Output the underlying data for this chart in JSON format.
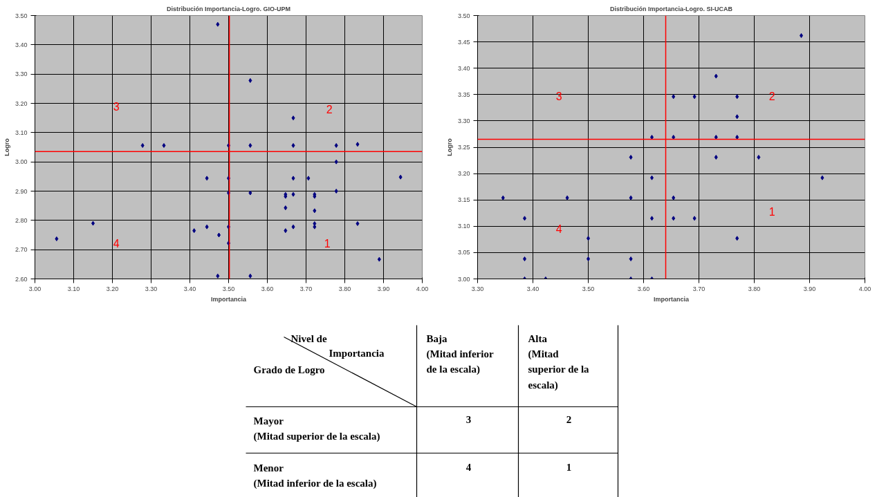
{
  "chart_data": [
    {
      "type": "scatter",
      "title": "Distribución Importancia-Logro. GIO-UPM",
      "xlabel": "Importancia",
      "ylabel": "Logro",
      "xlim": [
        3.0,
        4.0
      ],
      "ylim": [
        2.6,
        3.5
      ],
      "xticks": [
        {
          "value": 3.0,
          "label": "3.00"
        },
        {
          "value": 3.1,
          "label": "3.10"
        },
        {
          "value": 3.2,
          "label": "3.20"
        },
        {
          "value": 3.3,
          "label": "3.30"
        },
        {
          "value": 3.4,
          "label": "3.40"
        },
        {
          "value": 3.5,
          "label": "3.50"
        },
        {
          "value": 3.6,
          "label": "3.60"
        },
        {
          "value": 3.7,
          "label": "3.70"
        },
        {
          "value": 3.8,
          "label": "3.80"
        },
        {
          "value": 3.9,
          "label": "3.90"
        },
        {
          "value": 4.0,
          "label": "4.00"
        }
      ],
      "yticks": [
        {
          "value": 2.6,
          "label": "2.60"
        },
        {
          "value": 2.7,
          "label": "2.70"
        },
        {
          "value": 2.8,
          "label": "2.80"
        },
        {
          "value": 2.9,
          "label": "2.90"
        },
        {
          "value": 3.0,
          "label": "3.00"
        },
        {
          "value": 3.1,
          "label": "3.10"
        },
        {
          "value": 3.2,
          "label": "3.20"
        },
        {
          "value": 3.3,
          "label": "3.30"
        },
        {
          "value": 3.4,
          "label": "3.40"
        },
        {
          "value": 3.5,
          "label": "3.50"
        }
      ],
      "grid": true,
      "marker": "diamond",
      "series": [
        {
          "color": "#000080",
          "x": [
            3.056,
            3.15,
            3.278,
            3.333,
            3.472,
            3.444,
            3.411,
            3.444,
            3.475,
            3.472,
            3.5,
            3.5,
            3.5,
            3.5,
            3.5,
            3.556,
            3.556,
            3.556,
            3.556,
            3.667,
            3.667,
            3.667,
            3.667,
            3.647,
            3.647,
            3.647,
            3.647,
            3.667,
            3.706,
            3.722,
            3.722,
            3.722,
            3.722,
            3.722,
            3.778,
            3.778,
            3.778,
            3.833,
            3.833,
            3.889,
            3.944
          ],
          "values": [
            2.737,
            2.79,
            3.056,
            3.056,
            3.47,
            2.944,
            2.765,
            2.778,
            2.75,
            2.61,
            3.056,
            2.944,
            2.894,
            2.778,
            2.722,
            3.278,
            3.056,
            2.894,
            2.61,
            3.15,
            3.056,
            2.944,
            2.889,
            2.889,
            2.882,
            2.843,
            2.765,
            2.778,
            2.944,
            2.889,
            2.882,
            2.833,
            2.789,
            2.778,
            3.056,
            3.0,
            2.9,
            3.06,
            2.789,
            2.667,
            2.948
          ]
        }
      ],
      "ref_lines": [
        {
          "axis": "x",
          "value": 3.502,
          "color": "#ff0000"
        },
        {
          "axis": "y",
          "value": 3.035,
          "color": "#ff0000"
        }
      ],
      "annotations": [
        "3",
        "2",
        "4",
        "1"
      ]
    },
    {
      "type": "scatter",
      "title": "Distribución Importancia-Logro. SI-UCAB",
      "xlabel": "Importancia",
      "ylabel": "Logro",
      "xlim": [
        3.3,
        4.0
      ],
      "ylim": [
        3.0,
        3.5
      ],
      "xticks": [
        {
          "value": 3.3,
          "label": "3.30"
        },
        {
          "value": 3.4,
          "label": "3.40"
        },
        {
          "value": 3.5,
          "label": "3.50"
        },
        {
          "value": 3.6,
          "label": "3.60"
        },
        {
          "value": 3.7,
          "label": "3.70"
        },
        {
          "value": 3.8,
          "label": "3.80"
        },
        {
          "value": 3.9,
          "label": "3.90"
        },
        {
          "value": 4.0,
          "label": "4.00"
        }
      ],
      "yticks": [
        {
          "value": 3.0,
          "label": "3.00"
        },
        {
          "value": 3.05,
          "label": "3.05"
        },
        {
          "value": 3.1,
          "label": "3.10"
        },
        {
          "value": 3.15,
          "label": "3.15"
        },
        {
          "value": 3.2,
          "label": "3.20"
        },
        {
          "value": 3.25,
          "label": "3.25"
        },
        {
          "value": 3.3,
          "label": "3.30"
        },
        {
          "value": 3.35,
          "label": "3.35"
        },
        {
          "value": 3.4,
          "label": "3.40"
        },
        {
          "value": 3.45,
          "label": "3.45"
        },
        {
          "value": 3.5,
          "label": "3.50"
        }
      ],
      "grid": true,
      "marker": "diamond",
      "series": [
        {
          "color": "#000080",
          "x": [
            3.346,
            3.385,
            3.385,
            3.385,
            3.423,
            3.462,
            3.5,
            3.5,
            3.577,
            3.577,
            3.577,
            3.577,
            3.615,
            3.615,
            3.615,
            3.615,
            3.654,
            3.654,
            3.654,
            3.654,
            3.692,
            3.692,
            3.731,
            3.731,
            3.731,
            3.769,
            3.769,
            3.769,
            3.769,
            3.808,
            3.885,
            3.923
          ],
          "values": [
            3.154,
            3.115,
            3.038,
            3.0,
            3.0,
            3.154,
            3.077,
            3.038,
            3.231,
            3.154,
            3.038,
            3.0,
            3.269,
            3.192,
            3.115,
            3.0,
            3.346,
            3.269,
            3.154,
            3.115,
            3.346,
            3.115,
            3.385,
            3.269,
            3.231,
            3.346,
            3.308,
            3.269,
            3.077,
            3.231,
            3.462,
            3.192
          ]
        }
      ],
      "ref_lines": [
        {
          "axis": "x",
          "value": 3.64,
          "color": "#ff0000"
        },
        {
          "axis": "y",
          "value": 3.265,
          "color": "#ff0000"
        }
      ],
      "annotations": [
        "3",
        "2",
        "4",
        "1"
      ]
    },
    {
      "type": "other",
      "annotations": [
        "Nivel de\nImportancia",
        "Grado de Logro",
        "Baja\n(Mitad inferior\nde la escala)",
        "Alta\n(Mitad\nsuperior de la\nescala)",
        "Mayor\n(Mitad superior de la escala)",
        "Menor\n(Mitad inferior de la escala)",
        "3",
        "2",
        "4",
        "1"
      ]
    }
  ]
}
